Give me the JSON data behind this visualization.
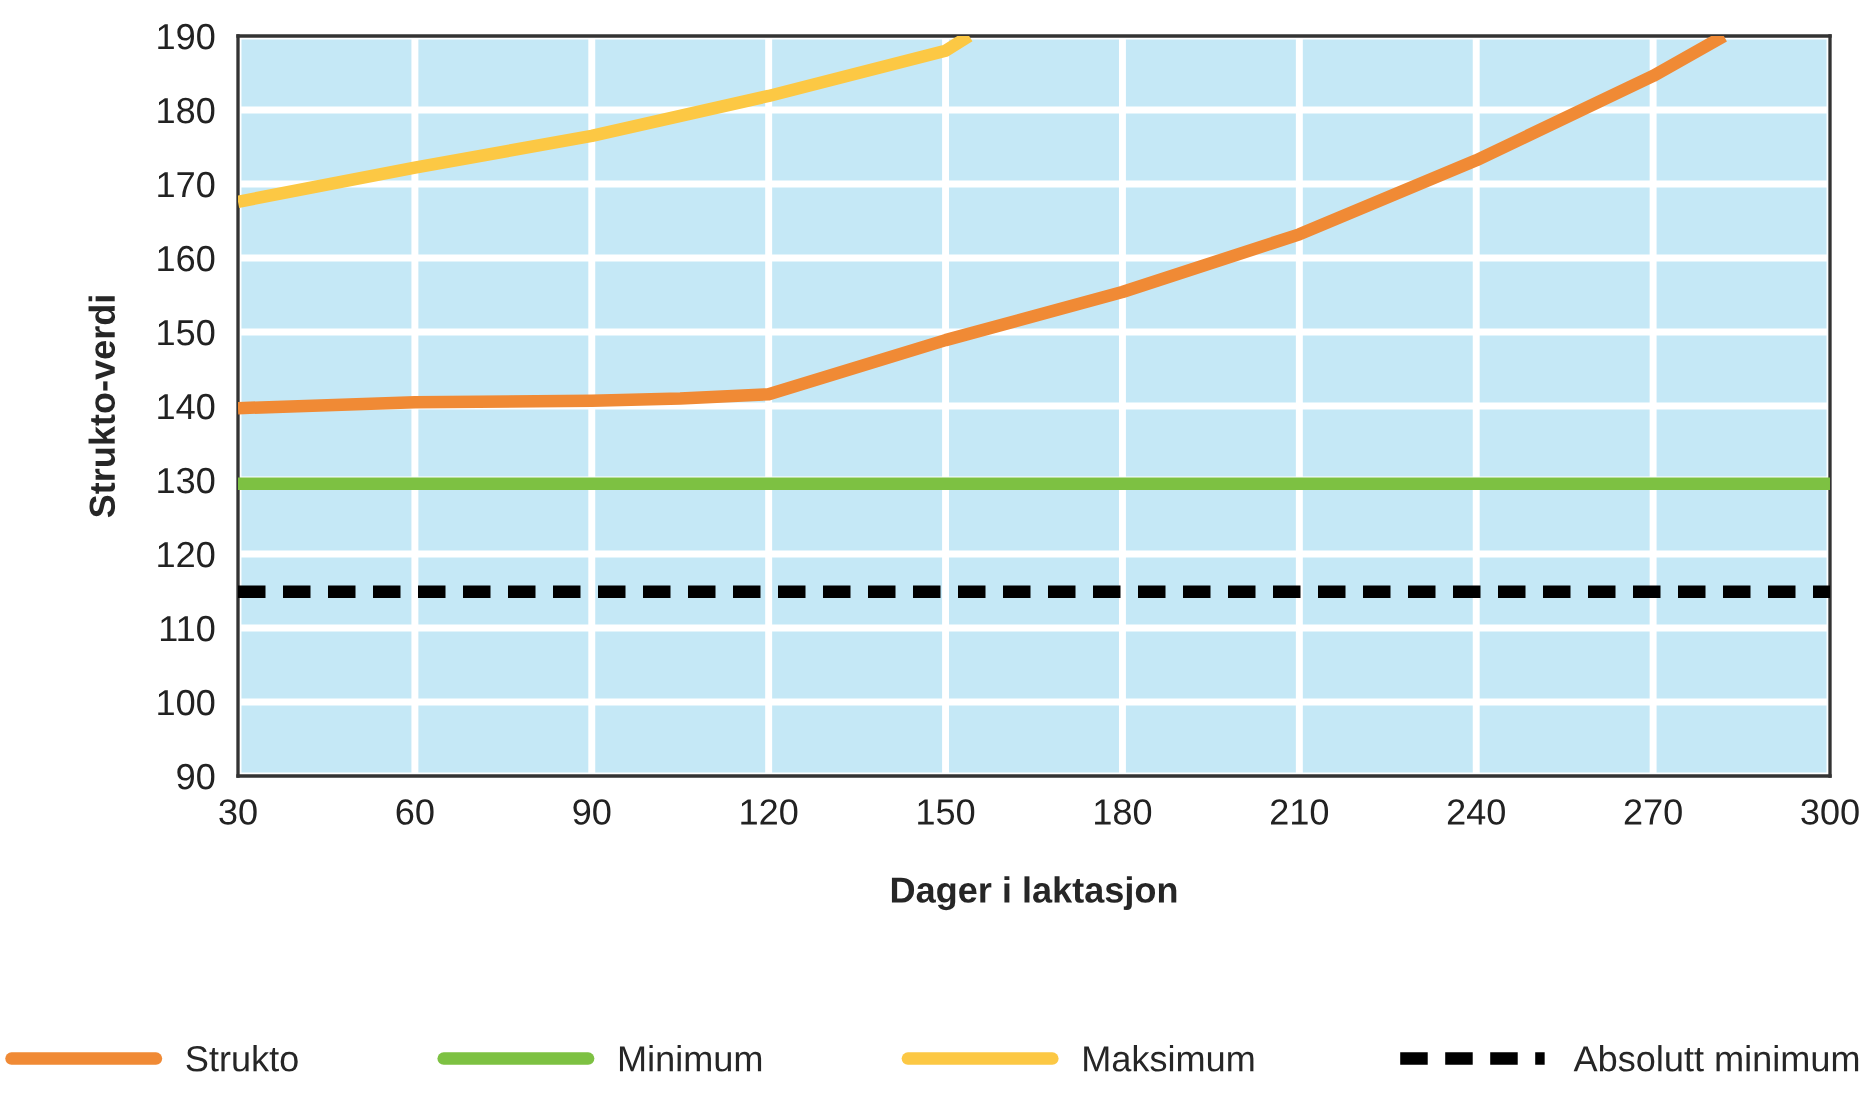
{
  "chart_data": {
    "type": "line",
    "xlabel": "Dager i laktasjon",
    "ylabel": "Strukto-verdi",
    "xlim": [
      30,
      300
    ],
    "xticks": [
      30,
      60,
      90,
      120,
      150,
      180,
      210,
      240,
      270,
      300
    ],
    "ylim": [
      90,
      190
    ],
    "yticks": [
      90,
      100,
      110,
      120,
      130,
      140,
      150,
      160,
      170,
      180,
      190
    ],
    "grid": true,
    "legend": "bottom",
    "series": [
      {
        "name": "Strukto",
        "color": "#f08a35",
        "x": [
          30,
          60,
          90,
          105,
          120,
          150,
          180,
          210,
          240,
          270,
          282
        ],
        "values": [
          139.7,
          140.5,
          140.7,
          141,
          141.6,
          148.9,
          155.4,
          163.2,
          173.2,
          184.6,
          190
        ]
      },
      {
        "name": "Minimum",
        "color": "#7dc142",
        "x": [
          30,
          300
        ],
        "values": [
          129.5,
          129.5
        ]
      },
      {
        "name": "Maksimum",
        "color": "#fcc844",
        "x": [
          30,
          60,
          90,
          120,
          150,
          154
        ],
        "values": [
          167.6,
          172.2,
          176.5,
          181.9,
          188,
          190
        ]
      },
      {
        "name": "Absolutt minimum",
        "color": "#000000",
        "line_style": "dashed",
        "x": [
          30,
          300
        ],
        "values": [
          114.9,
          114.9
        ]
      }
    ]
  }
}
